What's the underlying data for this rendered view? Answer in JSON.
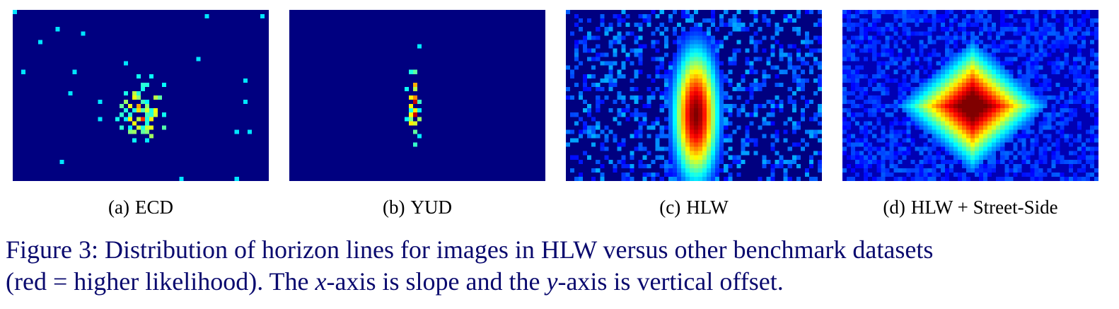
{
  "panels": [
    {
      "id": "a",
      "label": "(a)",
      "name": "ECD",
      "pattern": "sparse-scatter"
    },
    {
      "id": "b",
      "label": "(b)",
      "name": "YUD",
      "pattern": "narrow-column"
    },
    {
      "id": "c",
      "label": "(c)",
      "name": "HLW",
      "pattern": "vertical-ellipse"
    },
    {
      "id": "d",
      "label": "(d)",
      "name": "HLW + Street-Side",
      "pattern": "diamond"
    }
  ],
  "caption": {
    "line1": "Figure 3: Distribution of horizon lines for images in HLW versus other benchmark datasets",
    "line2_a": "(red = higher likelihood). The ",
    "line2_x": "x",
    "line2_b": "-axis is slope and the ",
    "line2_y": "y",
    "line2_c": "-axis is vertical offset."
  },
  "colormap": "jet",
  "background_color": "#00008f"
}
